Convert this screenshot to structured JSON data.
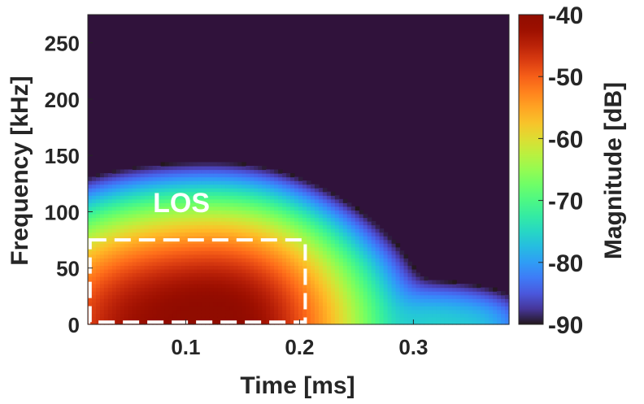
{
  "chart_data": {
    "type": "heatmap",
    "title": "",
    "xlabel": "Time [ms]",
    "ylabel": "Frequency [kHz]",
    "colorbar_label": "Magnitude [dB]",
    "xlim": [
      0.014,
      0.384
    ],
    "ylim": [
      0,
      275
    ],
    "clim": [
      -90,
      -40
    ],
    "x_ticks": [
      0.1,
      0.2,
      0.3
    ],
    "x_tick_labels": [
      "0.1",
      "0.2",
      "0.3"
    ],
    "y_ticks": [
      0,
      50,
      100,
      150,
      200,
      250
    ],
    "y_tick_labels": [
      "0",
      "50",
      "100",
      "150",
      "200",
      "250"
    ],
    "c_ticks": [
      -90,
      -80,
      -70,
      -60,
      -50,
      -40
    ],
    "c_tick_labels": [
      "-90",
      "-80",
      "-70",
      "-60",
      "-50",
      "-40"
    ],
    "colormap": "turbo",
    "background_color": "#30123b",
    "annotation": {
      "text": "LOS",
      "color": "#ffffff",
      "box_x": [
        0.016,
        0.205
      ],
      "box_y": [
        2,
        75
      ],
      "box_style": "dashed"
    },
    "sources": [
      {
        "t": 0.1,
        "f": 0,
        "peak_db": -41,
        "t_sigma": 0.045,
        "f_sigma": 30
      },
      {
        "t": 0.14,
        "f": 0,
        "peak_db": -44,
        "t_sigma": 0.03,
        "f_sigma": 30
      },
      {
        "t": 0.045,
        "f": 0,
        "peak_db": -51,
        "t_sigma": 0.025,
        "f_sigma": 26
      },
      {
        "t": 0.085,
        "f": 45,
        "peak_db": -66,
        "t_sigma": 0.04,
        "f_sigma": 22
      },
      {
        "t": 0.16,
        "f": 45,
        "peak_db": -66,
        "t_sigma": 0.03,
        "f_sigma": 22
      },
      {
        "t": 0.085,
        "f": 72,
        "peak_db": -80,
        "t_sigma": 0.01,
        "f_sigma": 18
      },
      {
        "t": 0.165,
        "f": 72,
        "peak_db": -80,
        "t_sigma": 0.01,
        "f_sigma": 18
      },
      {
        "t": 0.21,
        "f": 0,
        "peak_db": -68,
        "t_sigma": 0.02,
        "f_sigma": 17
      },
      {
        "t": 0.24,
        "f": 0,
        "peak_db": -80,
        "t_sigma": 0.02,
        "f_sigma": 13
      },
      {
        "t": 0.32,
        "f": 0,
        "peak_db": -76,
        "t_sigma": 0.035,
        "f_sigma": 15
      },
      {
        "t": 0.36,
        "f": 0,
        "peak_db": -83,
        "t_sigma": 0.015,
        "f_sigma": 10
      }
    ]
  }
}
